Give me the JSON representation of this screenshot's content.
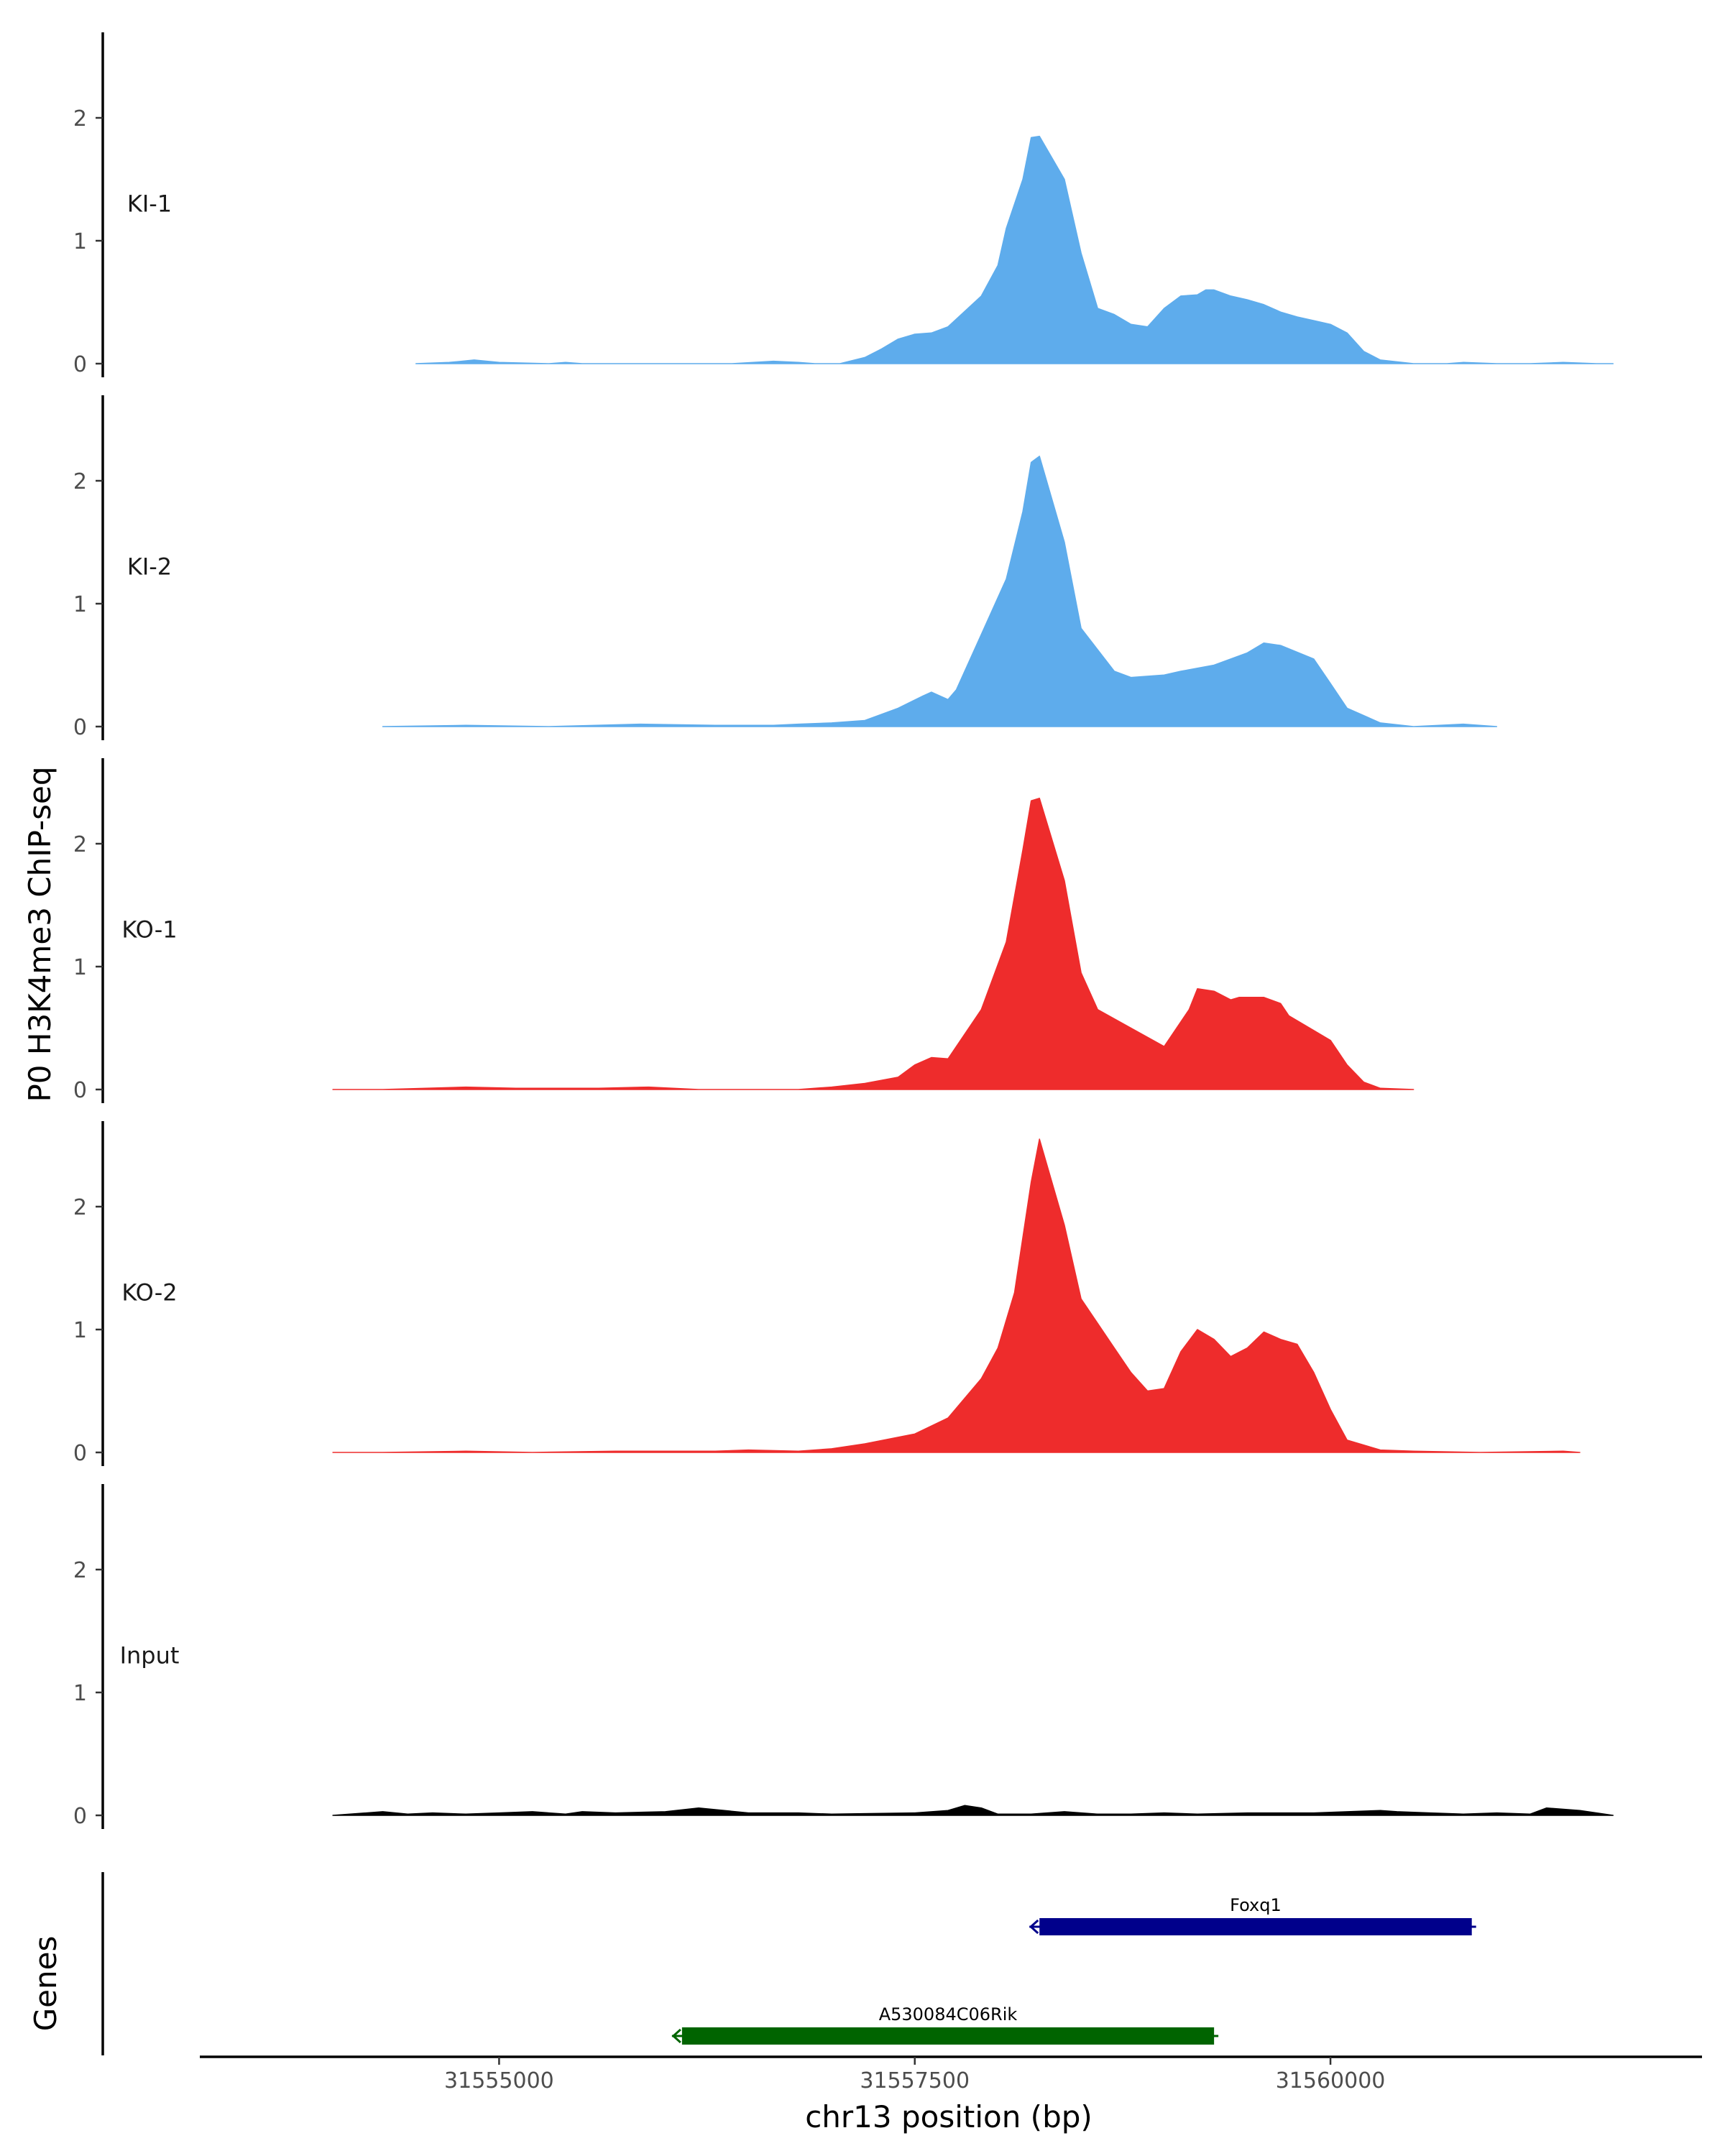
{
  "chart_data": {
    "type": "area",
    "ylabel": "P0 H3K4me3 ChIP-seq",
    "xlabel": "chr13 position (bp)",
    "xlim": [
      31553200,
      31562200
    ],
    "x_ticks": [
      31555000,
      31557500,
      31560000
    ],
    "x_tick_labels": [
      "31555000",
      "31557500",
      "31560000"
    ],
    "ylim": [
      0,
      2.7
    ],
    "y_ticks": [
      0,
      1,
      2
    ],
    "y_tick_labels": [
      "0",
      "1",
      "2"
    ],
    "series": [
      {
        "name": "KI-1",
        "color": "#5EACEC",
        "x": [
          31554500,
          31554700,
          31554850,
          31555000,
          31555300,
          31555400,
          31555500,
          31555600,
          31556400,
          31556650,
          31556800,
          31556900,
          31557000,
          31557050,
          31557200,
          31557300,
          31557400,
          31557500,
          31557600,
          31557700,
          31557900,
          31558000,
          31558050,
          31558150,
          31558200,
          31558250,
          31558400,
          31558500,
          31558600,
          31558700,
          31558800,
          31558900,
          31559000,
          31559100,
          31559200,
          31559250,
          31559300,
          31559400,
          31559500,
          31559600,
          31559700,
          31559800,
          31559900,
          31560000,
          31560100,
          31560200,
          31560300,
          31560500,
          31560700,
          31560800,
          31561000,
          31561200,
          31561400,
          31561600,
          31561700
        ],
        "values": [
          0.0,
          0.01,
          0.03,
          0.01,
          0.0,
          0.01,
          0.0,
          0.0,
          0.0,
          0.02,
          0.01,
          0.0,
          0.0,
          0.0,
          0.05,
          0.12,
          0.2,
          0.24,
          0.25,
          0.3,
          0.55,
          0.8,
          1.1,
          1.5,
          1.84,
          1.85,
          1.5,
          0.9,
          0.45,
          0.4,
          0.32,
          0.3,
          0.45,
          0.55,
          0.56,
          0.6,
          0.6,
          0.55,
          0.52,
          0.48,
          0.42,
          0.38,
          0.35,
          0.32,
          0.25,
          0.1,
          0.03,
          0.0,
          0.0,
          0.01,
          0.0,
          0.0,
          0.01,
          0.0,
          0.0
        ]
      },
      {
        "name": "KI-2",
        "color": "#5EACEC",
        "x": [
          31554300,
          31554800,
          31555300,
          31555850,
          31556300,
          31556650,
          31556800,
          31557000,
          31557200,
          31557300,
          31557400,
          31557550,
          31557600,
          31557700,
          31557750,
          31557900,
          31558050,
          31558150,
          31558200,
          31558250,
          31558400,
          31558500,
          31558700,
          31558800,
          31559000,
          31559100,
          31559300,
          31559500,
          31559600,
          31559700,
          31559900,
          31560000,
          31560100,
          31560300,
          31560500,
          31560800,
          31561000
        ],
        "values": [
          0.0,
          0.01,
          0.0,
          0.02,
          0.01,
          0.01,
          0.02,
          0.03,
          0.05,
          0.1,
          0.15,
          0.25,
          0.28,
          0.22,
          0.3,
          0.75,
          1.2,
          1.75,
          2.15,
          2.2,
          1.5,
          0.8,
          0.45,
          0.4,
          0.42,
          0.45,
          0.5,
          0.6,
          0.68,
          0.66,
          0.55,
          0.35,
          0.15,
          0.03,
          0.0,
          0.02,
          0.0
        ]
      },
      {
        "name": "KO-1",
        "color": "#EE2C2C",
        "x": [
          31554000,
          31554300,
          31554800,
          31555100,
          31555600,
          31555900,
          31556200,
          31556800,
          31557000,
          31557200,
          31557400,
          31557500,
          31557600,
          31557700,
          31557900,
          31558050,
          31558150,
          31558200,
          31558250,
          31558400,
          31558500,
          31558600,
          31558800,
          31559000,
          31559150,
          31559200,
          31559300,
          31559400,
          31559450,
          31559600,
          31559700,
          31559750,
          31559900,
          31560000,
          31560100,
          31560200,
          31560300,
          31560500
        ],
        "values": [
          0.0,
          0.0,
          0.02,
          0.01,
          0.01,
          0.02,
          0.0,
          0.0,
          0.02,
          0.05,
          0.1,
          0.2,
          0.26,
          0.25,
          0.65,
          1.2,
          1.95,
          2.35,
          2.37,
          1.7,
          0.95,
          0.65,
          0.5,
          0.35,
          0.65,
          0.82,
          0.8,
          0.73,
          0.75,
          0.75,
          0.7,
          0.6,
          0.48,
          0.4,
          0.2,
          0.06,
          0.01,
          0.0
        ]
      },
      {
        "name": "KO-2",
        "color": "#EE2C2C",
        "x": [
          31554000,
          31554300,
          31554800,
          31555200,
          31555700,
          31556300,
          31556500,
          31556800,
          31557000,
          31557200,
          31557500,
          31557700,
          31557900,
          31558000,
          31558100,
          31558200,
          31558250,
          31558400,
          31558500,
          31558700,
          31558800,
          31558900,
          31559000,
          31559100,
          31559200,
          31559300,
          31559400,
          31559500,
          31559600,
          31559700,
          31559800,
          31559900,
          31560000,
          31560100,
          31560300,
          31560500,
          31560900,
          31561400,
          31561500
        ],
        "values": [
          0.0,
          0.0,
          0.01,
          0.0,
          0.01,
          0.01,
          0.02,
          0.01,
          0.03,
          0.07,
          0.15,
          0.28,
          0.6,
          0.85,
          1.3,
          2.2,
          2.55,
          1.85,
          1.25,
          0.85,
          0.65,
          0.5,
          0.52,
          0.82,
          1.0,
          0.92,
          0.78,
          0.85,
          0.98,
          0.92,
          0.88,
          0.65,
          0.35,
          0.1,
          0.02,
          0.01,
          0.0,
          0.01,
          0.0
        ]
      },
      {
        "name": "Input",
        "color": "#000000",
        "x": [
          31554000,
          31554300,
          31554450,
          31554600,
          31554800,
          31555000,
          31555200,
          31555400,
          31555500,
          31555700,
          31556000,
          31556200,
          31556500,
          31556800,
          31557000,
          31557500,
          31557700,
          31557800,
          31557900,
          31558000,
          31558200,
          31558400,
          31558600,
          31558800,
          31559000,
          31559200,
          31559500,
          31559900,
          31560300,
          31560400,
          31560600,
          31560800,
          31561000,
          31561200,
          31561300,
          31561500,
          31561700
        ],
        "values": [
          0.0,
          0.03,
          0.01,
          0.02,
          0.01,
          0.02,
          0.03,
          0.01,
          0.03,
          0.02,
          0.03,
          0.06,
          0.02,
          0.02,
          0.01,
          0.02,
          0.04,
          0.08,
          0.06,
          0.01,
          0.01,
          0.03,
          0.01,
          0.01,
          0.02,
          0.01,
          0.02,
          0.02,
          0.04,
          0.03,
          0.02,
          0.01,
          0.02,
          0.01,
          0.06,
          0.04,
          0.0
        ]
      }
    ],
    "genes": [
      {
        "name": "Foxq1",
        "start": 31558250,
        "end": 31560850,
        "strand": "-",
        "color": "#00008B"
      },
      {
        "name": "A530084C06Rik",
        "start": 31556100,
        "end": 31559300,
        "strand": "-",
        "color": "#006400"
      }
    ],
    "genes_track_label": "Genes",
    "grid": false,
    "legend": "none"
  }
}
